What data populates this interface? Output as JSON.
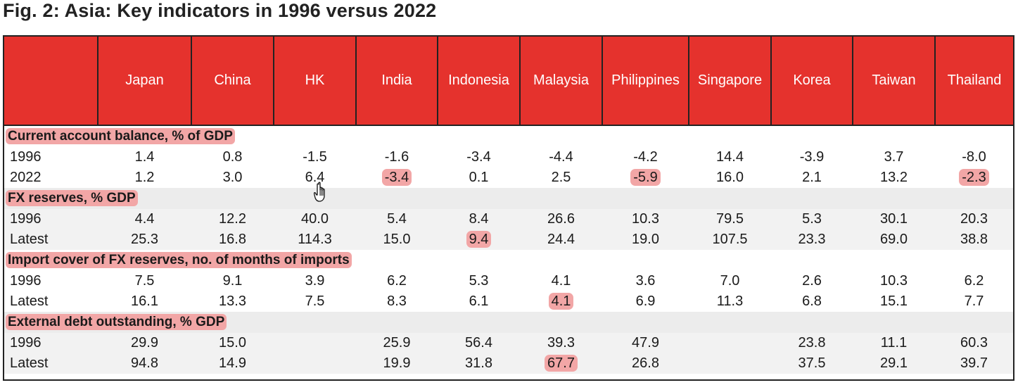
{
  "title": "Fig. 2: Asia: Key indicators in 1996 versus 2022",
  "columns": [
    "",
    "Japan",
    "China",
    "HK",
    "India",
    "Indonesia",
    "Malaysia",
    "Philippines",
    "Singapore",
    "Korea",
    "Taiwan",
    "Thailand"
  ],
  "sections": [
    {
      "label": "Current account balance, % of GDP",
      "rows": [
        {
          "label": "1996",
          "values": [
            "1.4",
            "0.8",
            "-1.5",
            "-1.6",
            "-3.4",
            "-4.4",
            "-4.2",
            "14.4",
            "-3.9",
            "3.7",
            "-8.0"
          ],
          "highlight": []
        },
        {
          "label": "2022",
          "values": [
            "1.2",
            "3.0",
            "6.4",
            "-3.4",
            "0.1",
            "2.5",
            "-5.9",
            "16.0",
            "2.1",
            "13.2",
            "-2.3"
          ],
          "highlight": [
            "India",
            "Philippines",
            "Thailand"
          ]
        }
      ]
    },
    {
      "label": "FX reserves, % GDP",
      "rows": [
        {
          "label": "1996",
          "values": [
            "4.4",
            "12.2",
            "40.0",
            "5.4",
            "8.4",
            "26.6",
            "10.3",
            "79.5",
            "5.3",
            "30.1",
            "20.3"
          ],
          "highlight": []
        },
        {
          "label": "Latest",
          "values": [
            "25.3",
            "16.8",
            "114.3",
            "15.0",
            "9.4",
            "24.4",
            "19.0",
            "107.5",
            "23.3",
            "69.0",
            "38.8"
          ],
          "highlight": [
            "Indonesia"
          ]
        }
      ]
    },
    {
      "label": "Import cover of FX reserves, no. of months of imports",
      "rows": [
        {
          "label": "1996",
          "values": [
            "7.5",
            "9.1",
            "3.9",
            "6.2",
            "5.3",
            "4.1",
            "3.6",
            "7.0",
            "2.6",
            "10.3",
            "6.2"
          ],
          "highlight": []
        },
        {
          "label": "Latest",
          "values": [
            "16.1",
            "13.3",
            "7.5",
            "8.3",
            "6.1",
            "4.1",
            "6.9",
            "11.3",
            "6.8",
            "15.1",
            "7.7"
          ],
          "highlight": [
            "Malaysia"
          ]
        }
      ]
    },
    {
      "label": "External debt outstanding, % GDP",
      "rows": [
        {
          "label": "1996",
          "values": [
            "29.9",
            "15.0",
            "",
            "25.9",
            "56.4",
            "39.3",
            "47.9",
            "",
            "23.8",
            "11.1",
            "60.3"
          ],
          "highlight": []
        },
        {
          "label": "Latest",
          "values": [
            "94.8",
            "14.9",
            "",
            "19.9",
            "31.8",
            "67.7",
            "26.8",
            "",
            "37.5",
            "29.1",
            "39.7"
          ],
          "highlight": [
            "Malaysia"
          ]
        }
      ]
    }
  ],
  "colors": {
    "header_red": "#e5322d",
    "highlight_pink": "#f2a6a6",
    "band_grey": "#f2f2f2"
  },
  "cursor": "hand-pointer-icon"
}
